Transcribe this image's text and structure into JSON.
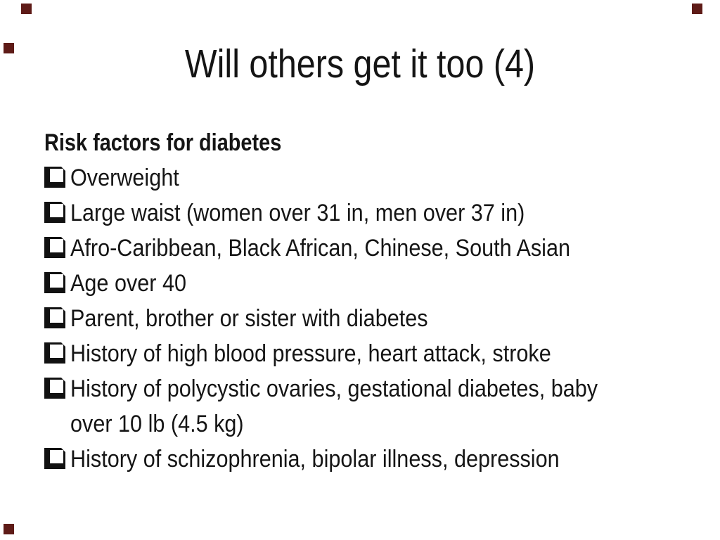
{
  "slide": {
    "title": "Will others get it too (4)",
    "heading": "Risk factors for diabetes",
    "bullets": [
      "Overweight",
      "Large waist (women over 31 in, men over 37 in)",
      "Afro-Caribbean, Black African, Chinese, South Asian",
      "Age over 40",
      "Parent, brother or sister with diabetes",
      "History of high blood pressure, heart attack, stroke",
      "History of polycystic ovaries, gestational diabetes, baby\nover 10 lb (4.5 kg)",
      "History of schizophrenia, bipolar illness, depression"
    ],
    "icons": {
      "bullet": "checkbox-bullet-icon"
    },
    "colors": {
      "background": "#ffffff",
      "text": "#151515",
      "corner_marker": "#5e1b17"
    }
  }
}
